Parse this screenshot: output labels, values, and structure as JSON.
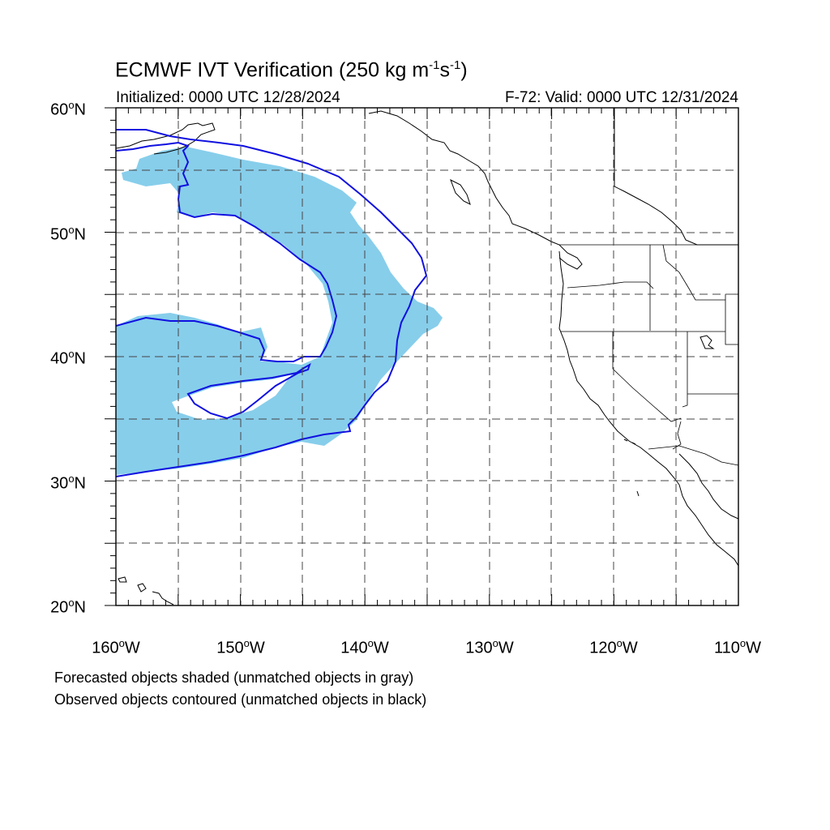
{
  "title": {
    "prefix": "ECMWF IVT Verification (250 kg m",
    "exp1": "-1",
    "mid": "s",
    "exp2": "-1",
    "suffix": ")"
  },
  "initialized": "Initialized: 0000 UTC 12/28/2024",
  "valid": "F-72: Valid: 0000 UTC 12/31/2024",
  "map": {
    "lon_range": [
      -160,
      -110
    ],
    "lat_range": [
      20,
      60
    ],
    "lat_labels": [
      {
        "value": "60",
        "unit": "o",
        "hemi": "N"
      },
      {
        "value": "50",
        "unit": "o",
        "hemi": "N"
      },
      {
        "value": "40",
        "unit": "o",
        "hemi": "N"
      },
      {
        "value": "30",
        "unit": "o",
        "hemi": "N"
      },
      {
        "value": "20",
        "unit": "o",
        "hemi": "N"
      }
    ],
    "lon_labels": [
      {
        "value": "160",
        "unit": "o",
        "hemi": "W"
      },
      {
        "value": "150",
        "unit": "o",
        "hemi": "W"
      },
      {
        "value": "140",
        "unit": "o",
        "hemi": "W"
      },
      {
        "value": "130",
        "unit": "o",
        "hemi": "W"
      },
      {
        "value": "120",
        "unit": "o",
        "hemi": "W"
      },
      {
        "value": "110",
        "unit": "o",
        "hemi": "W"
      }
    ],
    "grid_spacing_deg": 5,
    "forecast_color": "#87ceeb",
    "observed_color": "#1010e0"
  },
  "notes": {
    "line1": "Forecasted objects shaded (unmatched objects in gray)",
    "line2": "Observed objects contoured (unmatched objects in black)"
  }
}
